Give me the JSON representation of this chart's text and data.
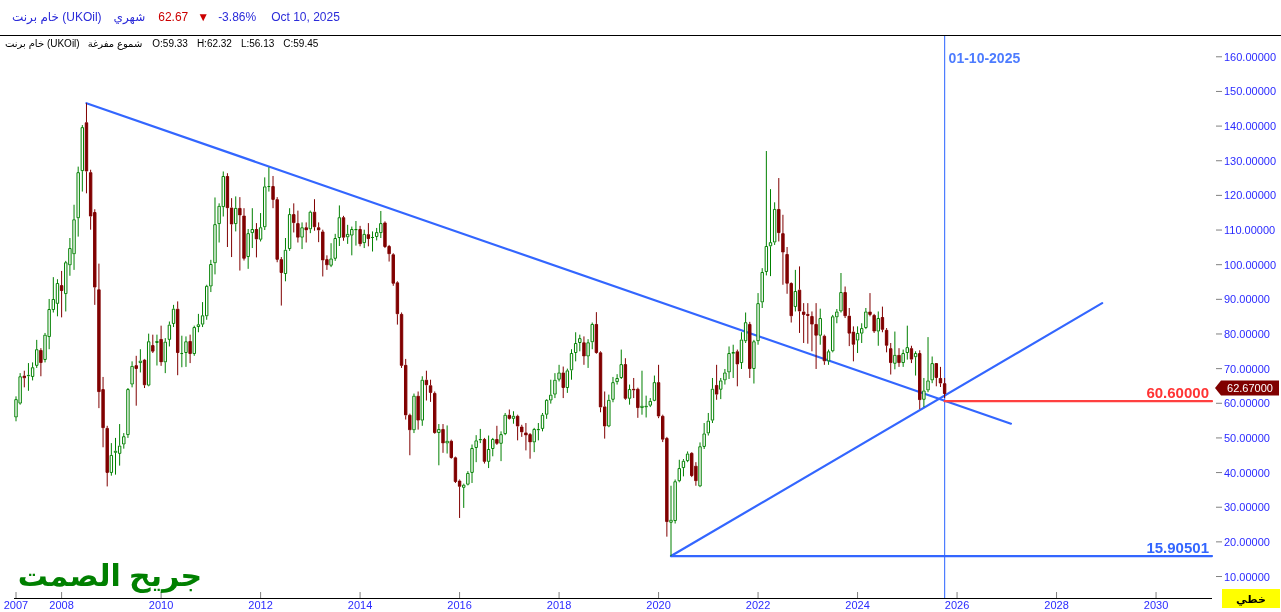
{
  "chart_data": {
    "type": "candlestick",
    "title": "خام برنت (UKOil)",
    "x": [
      "2007-02",
      "2007-03",
      "2007-04",
      "2007-05",
      "2007-06",
      "2007-07",
      "2007-08",
      "2007-09",
      "2007-10",
      "2007-11",
      "2007-12",
      "2008-01",
      "2008-02",
      "2008-03",
      "2008-04",
      "2008-05",
      "2008-06",
      "2008-07",
      "2008-08",
      "2008-09",
      "2008-10",
      "2008-11",
      "2008-12",
      "2009-01",
      "2009-02",
      "2009-03",
      "2009-04",
      "2009-05",
      "2009-06",
      "2009-07",
      "2009-08",
      "2009-09",
      "2009-10",
      "2009-11",
      "2009-12",
      "2010-01",
      "2010-02",
      "2010-03",
      "2010-04",
      "2010-05",
      "2010-06",
      "2010-07",
      "2010-08",
      "2010-09",
      "2010-10",
      "2010-11",
      "2010-12",
      "2011-01",
      "2011-02",
      "2011-03",
      "2011-04",
      "2011-05",
      "2011-06",
      "2011-07",
      "2011-08",
      "2011-09",
      "2011-10",
      "2011-11",
      "2011-12",
      "2012-01",
      "2012-02",
      "2012-03",
      "2012-04",
      "2012-05",
      "2012-06",
      "2012-07",
      "2012-08",
      "2012-09",
      "2012-10",
      "2012-11",
      "2012-12",
      "2013-01",
      "2013-02",
      "2013-03",
      "2013-04",
      "2013-05",
      "2013-06",
      "2013-07",
      "2013-08",
      "2013-09",
      "2013-10",
      "2013-11",
      "2013-12",
      "2014-01",
      "2014-02",
      "2014-03",
      "2014-04",
      "2014-05",
      "2014-06",
      "2014-07",
      "2014-08",
      "2014-09",
      "2014-10",
      "2014-11",
      "2014-12",
      "2015-01",
      "2015-02",
      "2015-03",
      "2015-04",
      "2015-05",
      "2015-06",
      "2015-07",
      "2015-08",
      "2015-09",
      "2015-10",
      "2015-11",
      "2015-12",
      "2016-01",
      "2016-02",
      "2016-03",
      "2016-04",
      "2016-05",
      "2016-06",
      "2016-07",
      "2016-08",
      "2016-09",
      "2016-10",
      "2016-11",
      "2016-12",
      "2017-01",
      "2017-02",
      "2017-03",
      "2017-04",
      "2017-05",
      "2017-06",
      "2017-07",
      "2017-08",
      "2017-09",
      "2017-10",
      "2017-11",
      "2017-12",
      "2018-01",
      "2018-02",
      "2018-03",
      "2018-04",
      "2018-05",
      "2018-06",
      "2018-07",
      "2018-08",
      "2018-09",
      "2018-10",
      "2018-11",
      "2018-12",
      "2019-01",
      "2019-02",
      "2019-03",
      "2019-04",
      "2019-05",
      "2019-06",
      "2019-07",
      "2019-08",
      "2019-09",
      "2019-10",
      "2019-11",
      "2019-12",
      "2020-01",
      "2020-02",
      "2020-03",
      "2020-04",
      "2020-05",
      "2020-06",
      "2020-07",
      "2020-08",
      "2020-09",
      "2020-10",
      "2020-11",
      "2020-12",
      "2021-01",
      "2021-02",
      "2021-03",
      "2021-04",
      "2021-05",
      "2021-06",
      "2021-07",
      "2021-08",
      "2021-09",
      "2021-10",
      "2021-11",
      "2021-12",
      "2022-01",
      "2022-02",
      "2022-03",
      "2022-04",
      "2022-05",
      "2022-06",
      "2022-07",
      "2022-08",
      "2022-09",
      "2022-10",
      "2022-11",
      "2022-12",
      "2023-01",
      "2023-02",
      "2023-03",
      "2023-04",
      "2023-05",
      "2023-06",
      "2023-07",
      "2023-08",
      "2023-09",
      "2023-10",
      "2023-11",
      "2023-12",
      "2024-01",
      "2024-02",
      "2024-03",
      "2024-04",
      "2024-05",
      "2024-06",
      "2024-07",
      "2024-08",
      "2024-09",
      "2024-10",
      "2024-11",
      "2024-12",
      "2025-01",
      "2025-02",
      "2025-03",
      "2025-04",
      "2025-05",
      "2025-06",
      "2025-07",
      "2025-08",
      "2025-09",
      "2025-10"
    ],
    "ohlc": [
      [
        55.9,
        62.0,
        54.8,
        61.2
      ],
      [
        59.9,
        68.7,
        59.6,
        67.8
      ],
      [
        68.0,
        69.4,
        64.6,
        67.2
      ],
      [
        67.8,
        71.6,
        63.6,
        68.2
      ],
      [
        67.6,
        71.8,
        66.6,
        70.4
      ],
      [
        70.8,
        78.3,
        70.2,
        75.6
      ],
      [
        75.4,
        75.9,
        67.8,
        71.6
      ],
      [
        72.5,
        80.3,
        71.8,
        79.8
      ],
      [
        79.1,
        90.1,
        75.6,
        87.2
      ],
      [
        86.9,
        96.4,
        86.2,
        90.1
      ],
      [
        88.7,
        95.8,
        85.1,
        94.7
      ],
      [
        94.1,
        98.2,
        84.8,
        92.4
      ],
      [
        91.5,
        101.1,
        86.5,
        100.7
      ],
      [
        99.8,
        107.7,
        96.8,
        104.8
      ],
      [
        103.0,
        117.3,
        98.5,
        113.1
      ],
      [
        113.4,
        128.3,
        108.1,
        126.7
      ],
      [
        127.0,
        140.3,
        121.1,
        139.7
      ],
      [
        141.1,
        146.6,
        120.6,
        126.9
      ],
      [
        126.7,
        127.4,
        110.1,
        113.9
      ],
      [
        115.2,
        116.0,
        88.4,
        93.4
      ],
      [
        92.9,
        100.3,
        58.6,
        63.2
      ],
      [
        64.1,
        67.6,
        47.3,
        52.8
      ],
      [
        52.9,
        53.5,
        36.0,
        39.9
      ],
      [
        39.9,
        48.5,
        39.1,
        45.1
      ],
      [
        45.7,
        50.0,
        39.4,
        46.3
      ],
      [
        45.4,
        54.0,
        42.0,
        47.8
      ],
      [
        48.1,
        51.4,
        46.9,
        50.5
      ],
      [
        50.8,
        64.4,
        50.0,
        64.1
      ],
      [
        65.4,
        72.1,
        64.6,
        70.8
      ],
      [
        71.0,
        73.7,
        59.3,
        69.9
      ],
      [
        71.6,
        75.6,
        68.9,
        72.3
      ],
      [
        72.6,
        72.8,
        64.4,
        65.2
      ],
      [
        65.1,
        80.1,
        64.9,
        77.9
      ],
      [
        76.8,
        79.8,
        74.5,
        74.9
      ],
      [
        77.4,
        79.8,
        70.9,
        78.0
      ],
      [
        78.6,
        82.4,
        70.8,
        71.8
      ],
      [
        71.8,
        78.8,
        68.7,
        77.8
      ],
      [
        78.3,
        83.6,
        76.4,
        82.7
      ],
      [
        82.9,
        88.4,
        82.0,
        87.3
      ],
      [
        87.3,
        89.4,
        68.1,
        74.5
      ],
      [
        74.2,
        79.5,
        70.4,
        74.5
      ],
      [
        74.5,
        79.3,
        70.5,
        77.9
      ],
      [
        78.0,
        79.8,
        71.6,
        74.2
      ],
      [
        74.2,
        82.4,
        73.7,
        82.0
      ],
      [
        82.0,
        85.8,
        80.5,
        82.8
      ],
      [
        82.7,
        89.2,
        82.0,
        85.4
      ],
      [
        85.1,
        94.2,
        84.1,
        93.9
      ],
      [
        93.7,
        101.4,
        92.1,
        100.2
      ],
      [
        100.4,
        119.4,
        97.2,
        111.7
      ],
      [
        111.7,
        117.7,
        106.4,
        117.0
      ],
      [
        116.6,
        126.9,
        113.9,
        125.6
      ],
      [
        125.6,
        126.4,
        105.1,
        116.3
      ],
      [
        116.5,
        119.2,
        102.2,
        111.6
      ],
      [
        111.7,
        119.7,
        109.6,
        116.4
      ],
      [
        116.4,
        119.5,
        98.3,
        114.2
      ],
      [
        114.2,
        116.3,
        101.2,
        101.7
      ],
      [
        102.2,
        110.3,
        98.8,
        109.1
      ],
      [
        109.1,
        116.3,
        104.8,
        110.3
      ],
      [
        110.3,
        112.0,
        102.1,
        107.3
      ],
      [
        107.2,
        114.9,
        106.7,
        110.8
      ],
      [
        110.8,
        125.2,
        110.0,
        122.6
      ],
      [
        122.4,
        128.1,
        121.1,
        122.7
      ],
      [
        122.7,
        125.6,
        116.3,
        118.7
      ],
      [
        118.9,
        119.5,
        100.7,
        101.4
      ],
      [
        101.6,
        102.2,
        88.2,
        97.6
      ],
      [
        97.3,
        107.7,
        95.2,
        104.3
      ],
      [
        104.5,
        116.3,
        104.0,
        114.6
      ],
      [
        114.6,
        117.7,
        109.3,
        112.0
      ],
      [
        112.0,
        115.6,
        106.4,
        107.8
      ],
      [
        107.8,
        112.2,
        104.5,
        110.8
      ],
      [
        110.8,
        112.2,
        106.4,
        109.9
      ],
      [
        110.2,
        115.6,
        109.1,
        115.3
      ],
      [
        115.3,
        118.9,
        109.8,
        110.8
      ],
      [
        110.8,
        112.2,
        106.5,
        109.9
      ],
      [
        109.6,
        110.1,
        96.6,
        101.2
      ],
      [
        101.6,
        102.7,
        98.5,
        99.8
      ],
      [
        99.7,
        106.2,
        99.3,
        101.8
      ],
      [
        101.7,
        108.9,
        101.1,
        107.7
      ],
      [
        107.7,
        117.1,
        105.4,
        113.7
      ],
      [
        113.7,
        114.1,
        106.9,
        107.8
      ],
      [
        107.9,
        111.5,
        106.0,
        108.9
      ],
      [
        108.4,
        111.0,
        102.7,
        110.3
      ],
      [
        109.9,
        112.6,
        105.5,
        110.3
      ],
      [
        110.3,
        111.2,
        105.3,
        105.9
      ],
      [
        106.2,
        110.1,
        104.8,
        108.9
      ],
      [
        108.8,
        112.0,
        105.3,
        107.4
      ],
      [
        107.7,
        109.6,
        103.8,
        108.0
      ],
      [
        108.0,
        110.6,
        107.0,
        109.4
      ],
      [
        109.1,
        115.5,
        107.7,
        112.0
      ],
      [
        112.2,
        112.5,
        104.8,
        105.1
      ],
      [
        105.4,
        105.7,
        100.9,
        103.0
      ],
      [
        103.0,
        103.3,
        93.9,
        94.5
      ],
      [
        94.9,
        95.2,
        82.7,
        85.7
      ],
      [
        85.8,
        86.2,
        70.2,
        70.8
      ],
      [
        71.1,
        72.8,
        55.3,
        56.5
      ],
      [
        56.7,
        57.0,
        45.0,
        52.2
      ],
      [
        52.2,
        62.8,
        51.4,
        62.2
      ],
      [
        62.2,
        63.4,
        52.4,
        55.0
      ],
      [
        55.0,
        67.8,
        53.5,
        66.8
      ],
      [
        66.8,
        69.4,
        60.8,
        65.2
      ],
      [
        65.2,
        66.8,
        60.4,
        63.0
      ],
      [
        63.0,
        63.4,
        51.2,
        51.4
      ],
      [
        51.4,
        54.0,
        42.1,
        52.6
      ],
      [
        52.6,
        54.0,
        45.7,
        48.4
      ],
      [
        48.4,
        53.6,
        45.5,
        49.2
      ],
      [
        49.2,
        49.5,
        44.0,
        44.2
      ],
      [
        44.4,
        44.6,
        37.0,
        37.3
      ],
      [
        37.7,
        38.0,
        26.9,
        35.9
      ],
      [
        35.6,
        36.8,
        29.8,
        36.5
      ],
      [
        36.5,
        40.4,
        36.3,
        39.9
      ],
      [
        39.9,
        48.1,
        37.0,
        47.1
      ],
      [
        47.1,
        50.8,
        43.0,
        49.3
      ],
      [
        49.3,
        52.6,
        48.5,
        49.7
      ],
      [
        49.7,
        50.0,
        42.6,
        43.1
      ],
      [
        43.1,
        50.7,
        41.3,
        46.8
      ],
      [
        46.8,
        50.0,
        44.7,
        49.7
      ],
      [
        49.7,
        53.5,
        48.0,
        48.3
      ],
      [
        48.3,
        51.9,
        43.3,
        51.1
      ],
      [
        51.1,
        57.2,
        50.8,
        56.7
      ],
      [
        56.7,
        58.2,
        55.3,
        55.5
      ],
      [
        55.5,
        57.7,
        54.1,
        56.4
      ],
      [
        56.4,
        56.7,
        49.3,
        53.3
      ],
      [
        53.3,
        53.8,
        50.3,
        51.6
      ],
      [
        51.6,
        54.3,
        46.4,
        50.7
      ],
      [
        51.1,
        51.4,
        44.0,
        48.7
      ],
      [
        48.7,
        52.9,
        45.9,
        52.6
      ],
      [
        52.2,
        54.3,
        49.3,
        52.6
      ],
      [
        52.6,
        57.2,
        51.9,
        56.7
      ],
      [
        56.7,
        61.2,
        55.5,
        61.0
      ],
      [
        60.8,
        66.8,
        59.9,
        62.5
      ],
      [
        62.5,
        68.7,
        61.5,
        66.8
      ],
      [
        66.8,
        71.1,
        66.3,
        68.9
      ],
      [
        68.9,
        70.6,
        61.5,
        64.4
      ],
      [
        64.4,
        70.0,
        63.0,
        69.5
      ],
      [
        69.5,
        75.6,
        66.8,
        74.5
      ],
      [
        74.5,
        80.5,
        72.1,
        77.4
      ],
      [
        77.4,
        79.8,
        75.0,
        78.8
      ],
      [
        77.6,
        79.3,
        71.1,
        73.5
      ],
      [
        73.5,
        78.5,
        70.2,
        77.6
      ],
      [
        77.6,
        83.3,
        75.6,
        82.9
      ],
      [
        82.9,
        86.3,
        74.3,
        74.5
      ],
      [
        74.7,
        75.0,
        57.4,
        58.8
      ],
      [
        59.1,
        63.4,
        49.8,
        53.3
      ],
      [
        53.3,
        62.5,
        53.1,
        61.0
      ],
      [
        61.0,
        67.6,
        60.3,
        66.1
      ],
      [
        66.1,
        68.4,
        65.4,
        67.3
      ],
      [
        67.3,
        75.5,
        67.0,
        71.3
      ],
      [
        71.3,
        73.0,
        61.0,
        61.3
      ],
      [
        61.3,
        65.4,
        59.6,
        64.1
      ],
      [
        64.2,
        67.3,
        61.5,
        63.7
      ],
      [
        64.2,
        64.5,
        55.8,
        58.6
      ],
      [
        58.6,
        69.4,
        56.7,
        59.3
      ],
      [
        58.8,
        62.2,
        55.9,
        59.3
      ],
      [
        59.3,
        61.5,
        58.9,
        60.7
      ],
      [
        60.7,
        68.0,
        60.6,
        66.1
      ],
      [
        66.1,
        71.1,
        55.7,
        56.2
      ],
      [
        56.4,
        56.7,
        48.8,
        49.5
      ],
      [
        50.0,
        50.3,
        21.5,
        25.7
      ],
      [
        25.5,
        36.2,
        15.90501,
        26.4
      ],
      [
        26.0,
        38.0,
        25.3,
        37.5
      ],
      [
        37.5,
        43.7,
        37.2,
        41.3
      ],
      [
        41.3,
        43.9,
        38.9,
        43.4
      ],
      [
        43.3,
        46.1,
        43.0,
        45.5
      ],
      [
        45.7,
        45.9,
        38.7,
        39.0
      ],
      [
        42.0,
        43.0,
        36.2,
        37.5
      ],
      [
        36.0,
        48.7,
        35.8,
        47.6
      ],
      [
        47.4,
        54.3,
        46.8,
        51.3
      ],
      [
        51.3,
        57.2,
        50.7,
        55.0
      ],
      [
        55.0,
        67.3,
        54.3,
        64.2
      ],
      [
        65.3,
        71.1,
        61.0,
        62.5
      ],
      [
        63.9,
        67.3,
        61.2,
        66.6
      ],
      [
        66.6,
        69.9,
        65.4,
        68.9
      ],
      [
        68.9,
        76.4,
        67.0,
        74.5
      ],
      [
        74.3,
        76.9,
        67.3,
        74.8
      ],
      [
        75.0,
        75.5,
        64.9,
        71.2
      ],
      [
        71.6,
        80.5,
        69.9,
        78.4
      ],
      [
        77.9,
        86.2,
        77.4,
        83.4
      ],
      [
        82.9,
        83.5,
        67.3,
        69.9
      ],
      [
        69.9,
        78.3,
        65.7,
        77.9
      ],
      [
        77.9,
        91.8,
        76.9,
        88.9
      ],
      [
        89.1,
        99.0,
        87.5,
        97.9
      ],
      [
        97.9,
        132.8,
        96.9,
        105.4
      ],
      [
        105.3,
        121.8,
        96.7,
        106.5
      ],
      [
        106.4,
        118.0,
        105.7,
        116.1
      ],
      [
        116.1,
        125.0,
        106.7,
        109.1
      ],
      [
        109.1,
        114.4,
        94.2,
        103.5
      ],
      [
        103.1,
        105.1,
        91.6,
        94.5
      ],
      [
        94.7,
        94.9,
        83.3,
        85.1
      ],
      [
        87.8,
        98.5,
        86.5,
        92.4
      ],
      [
        92.8,
        99.5,
        80.3,
        86.5
      ],
      [
        86.5,
        88.9,
        77.4,
        85.5
      ],
      [
        85.8,
        88.9,
        77.2,
        85.2
      ],
      [
        85.2,
        86.5,
        75.0,
        82.7
      ],
      [
        82.9,
        88.9,
        69.9,
        79.5
      ],
      [
        79.5,
        87.3,
        76.9,
        84.6
      ],
      [
        79.5,
        79.8,
        71.1,
        72.1
      ],
      [
        72.1,
        75.5,
        71.1,
        75.0
      ],
      [
        75.0,
        85.5,
        74.7,
        85.1
      ],
      [
        84.8,
        87.2,
        83.1,
        86.5
      ],
      [
        86.5,
        97.6,
        86.2,
        92.1
      ],
      [
        92.1,
        93.7,
        84.6,
        85.1
      ],
      [
        85.3,
        87.5,
        76.5,
        80.1
      ],
      [
        80.7,
        82.2,
        72.1,
        76.9
      ],
      [
        78.1,
        82.2,
        74.5,
        80.3
      ],
      [
        80.1,
        83.1,
        77.4,
        81.7
      ],
      [
        81.7,
        87.5,
        81.4,
        86.5
      ],
      [
        86.5,
        91.8,
        85.1,
        85.5
      ],
      [
        85.5,
        85.8,
        80.3,
        80.7
      ],
      [
        80.7,
        86.5,
        76.6,
        84.6
      ],
      [
        84.9,
        87.9,
        80.5,
        81.2
      ],
      [
        81.2,
        81.7,
        74.7,
        76.6
      ],
      [
        75.9,
        77.4,
        68.3,
        71.6
      ],
      [
        71.4,
        80.7,
        69.8,
        74.0
      ],
      [
        74.0,
        75.9,
        70.5,
        71.6
      ],
      [
        71.6,
        75.5,
        70.5,
        74.5
      ],
      [
        74.5,
        82.4,
        72.6,
        76.2
      ],
      [
        75.9,
        76.6,
        71.6,
        72.6
      ],
      [
        73.3,
        75.0,
        68.0,
        74.5
      ],
      [
        74.5,
        75.3,
        58.3,
        60.9
      ],
      [
        61.0,
        67.3,
        58.9,
        63.7
      ],
      [
        63.7,
        79.1,
        63.2,
        66.6
      ],
      [
        66.6,
        73.5,
        65.8,
        71.6
      ],
      [
        71.6,
        71.6,
        64.9,
        67.3
      ],
      [
        67.3,
        70.5,
        64.7,
        65.7
      ],
      [
        65.8,
        67.3,
        61.5,
        62.67
      ]
    ],
    "colors": [
      "#008000",
      "#008000",
      "#800000",
      "#008000",
      "#008000",
      "#008000",
      "#800000",
      "#008000",
      "#008000",
      "#008000",
      "#008000",
      "#800000",
      "#008000",
      "#008000",
      "#008000",
      "#008000",
      "#008000",
      "#800000",
      "#800000",
      "#800000",
      "#800000",
      "#800000",
      "#800000",
      "#008000",
      "#008000",
      "#008000",
      "#008000",
      "#008000",
      "#008000",
      "#800000",
      "#008000",
      "#800000",
      "#008000",
      "#800000",
      "#008000",
      "#800000",
      "#008000",
      "#008000",
      "#008000",
      "#800000",
      "#008000",
      "#008000",
      "#800000",
      "#008000",
      "#008000",
      "#008000",
      "#008000",
      "#008000",
      "#008000",
      "#008000",
      "#008000",
      "#800000",
      "#800000",
      "#008000",
      "#800000",
      "#800000",
      "#008000",
      "#008000",
      "#800000",
      "#008000",
      "#008000",
      "#008000",
      "#800000",
      "#800000",
      "#800000",
      "#008000",
      "#008000",
      "#800000",
      "#800000",
      "#008000",
      "#800000",
      "#008000",
      "#800000",
      "#800000",
      "#800000",
      "#800000",
      "#008000",
      "#008000",
      "#008000",
      "#800000",
      "#008000",
      "#008000",
      "#008000",
      "#800000",
      "#008000",
      "#800000",
      "#008000",
      "#008000",
      "#008000",
      "#800000",
      "#800000",
      "#800000",
      "#800000",
      "#800000",
      "#800000",
      "#800000",
      "#008000",
      "#800000",
      "#008000",
      "#800000",
      "#800000",
      "#800000",
      "#008000",
      "#800000",
      "#008000",
      "#800000",
      "#800000",
      "#800000",
      "#008000",
      "#008000",
      "#008000",
      "#008000",
      "#008000",
      "#800000",
      "#008000",
      "#008000",
      "#800000",
      "#008000",
      "#008000",
      "#800000",
      "#008000",
      "#800000",
      "#800000",
      "#800000",
      "#800000",
      "#008000",
      "#008000",
      "#008000",
      "#008000",
      "#008000",
      "#008000",
      "#008000",
      "#800000",
      "#008000",
      "#008000",
      "#008000",
      "#008000",
      "#800000",
      "#008000",
      "#008000",
      "#800000",
      "#800000",
      "#800000",
      "#008000",
      "#008000",
      "#008000",
      "#008000",
      "#800000",
      "#008000",
      "#800000",
      "#800000",
      "#008000",
      "#008000",
      "#008000",
      "#008000",
      "#800000",
      "#800000",
      "#800000",
      "#008000",
      "#008000",
      "#008000",
      "#008000",
      "#008000",
      "#800000",
      "#800000",
      "#008000",
      "#008000",
      "#008000",
      "#008000",
      "#800000",
      "#008000",
      "#008000",
      "#008000",
      "#008000",
      "#800000",
      "#008000",
      "#008000",
      "#800000",
      "#008000",
      "#008000",
      "#008000",
      "#008000",
      "#008000",
      "#008000",
      "#800000",
      "#800000",
      "#800000",
      "#800000",
      "#008000",
      "#800000",
      "#800000",
      "#800000",
      "#800000",
      "#800000",
      "#008000",
      "#800000",
      "#008000",
      "#008000",
      "#008000",
      "#008000",
      "#800000",
      "#800000",
      "#800000",
      "#008000",
      "#008000",
      "#008000",
      "#800000",
      "#800000",
      "#008000",
      "#800000",
      "#800000",
      "#800000",
      "#008000",
      "#800000",
      "#008000",
      "#008000",
      "#800000",
      "#008000",
      "#800000",
      "#008000",
      "#008000",
      "#008000",
      "#800000",
      "#800000",
      "#800000"
    ],
    "series": [
      {
        "type": "line",
        "color": "#3366ff",
        "x": [
          "2008-07",
          "2027-02"
        ],
        "values": [
          146.6,
          54.1
        ]
      },
      {
        "type": "line",
        "color": "#3366ff",
        "x": [
          "2020-04",
          "2028-12"
        ],
        "values": [
          15.90501,
          88.9
        ]
      },
      {
        "type": "line",
        "color": "#3366ff",
        "x": [
          "2020-04",
          "2031-02-15"
        ],
        "values": [
          15.90501,
          15.90501
        ]
      },
      {
        "type": "line",
        "color": "#ff4040",
        "x": [
          "2025-10",
          "2031-02-15"
        ],
        "values": [
          60.6,
          60.6
        ]
      }
    ],
    "xlim": [
      "2007-01-17",
      "2031-02-15"
    ],
    "ylim": [
      3.8,
      166
    ],
    "xticks": [
      {
        "value": "2007-02",
        "label": "2007"
      },
      "2008",
      "2010",
      "2012",
      "2014",
      "2016",
      "2018",
      "2020",
      "2022",
      "2024",
      "2026",
      "2028",
      "2030"
    ],
    "yticks": [
      {
        "value": 10,
        "label": "10.00000"
      },
      {
        "value": 20,
        "label": "20.00000"
      },
      {
        "value": 30,
        "label": "30.00000"
      },
      {
        "value": 40,
        "label": "40.00000"
      },
      {
        "value": 50,
        "label": "50.00000"
      },
      {
        "value": 60,
        "label": "60.00000"
      },
      {
        "value": 70,
        "label": "70.00000"
      },
      {
        "value": 80,
        "label": "80.00000"
      },
      {
        "value": 90,
        "label": "90.00000"
      },
      {
        "value": 100,
        "label": "100.00000"
      },
      {
        "value": 110,
        "label": "110.00000"
      },
      {
        "value": 120,
        "label": "120.00000"
      },
      {
        "value": 130,
        "label": "130.00000"
      },
      {
        "value": 140,
        "label": "140.00000"
      },
      {
        "value": 150,
        "label": "150.00000"
      },
      {
        "value": 160,
        "label": "160.00000"
      }
    ],
    "ref_lines": [
      {
        "axis": "x",
        "value": "2025-10-01",
        "label": "01-10-2025",
        "color": "#4d7cff"
      }
    ],
    "annotations": [
      "شهري",
      "62.67",
      "▼",
      "-3.86%",
      "Oct 10, 2025",
      "خام برنت (UKOil)",
      "شموع مفرغة",
      "O:59.33",
      "H:62.32",
      "L:56.13",
      "C:59.45",
      {
        "text": "60.60000",
        "x": "2031-02-15",
        "y": 60.6
      },
      {
        "text": "15.90501",
        "x": "2031-02-15",
        "y": 15.90501
      },
      "62.67000",
      "جريح الصمت",
      "خطي"
    ]
  }
}
